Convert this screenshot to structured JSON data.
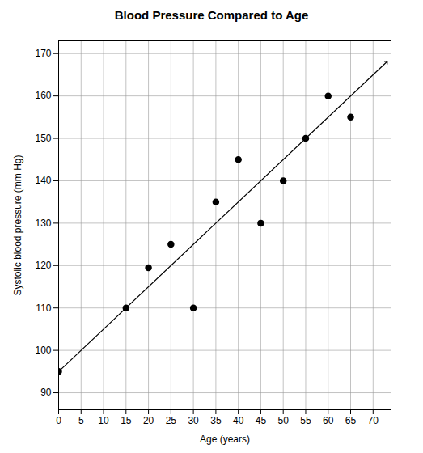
{
  "chart_data": {
    "type": "scatter",
    "title": "Blood Pressure Compared to Age",
    "x_label": "Age (years)",
    "y_label": "Systolic blood pressure (mm Hg)",
    "x": [
      0,
      15,
      20,
      25,
      30,
      35,
      40,
      45,
      50,
      55,
      60,
      65
    ],
    "values": [
      95,
      110,
      119.5,
      125,
      110,
      135,
      145,
      130,
      140,
      150,
      160,
      155
    ],
    "trend_line": {
      "x": [
        0,
        73
      ],
      "values": [
        95,
        168
      ]
    },
    "color": "#000000",
    "marker": "circle",
    "xlim": [
      0,
      74
    ],
    "xticks": [
      0,
      5,
      10,
      15,
      20,
      25,
      30,
      35,
      40,
      45,
      50,
      55,
      60,
      65,
      70
    ],
    "ylim": [
      86,
      173
    ],
    "yticks": [
      90,
      100,
      110,
      120,
      130,
      140,
      150,
      160,
      170
    ],
    "grid": true
  }
}
